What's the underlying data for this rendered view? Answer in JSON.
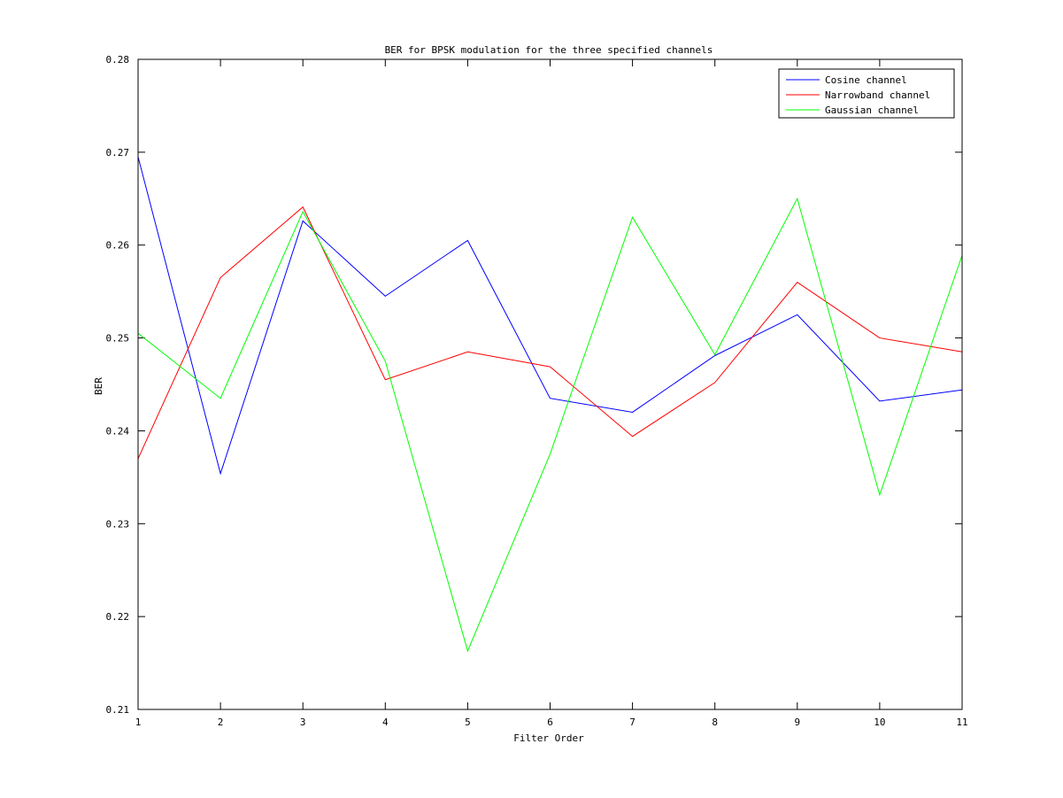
{
  "chart_data": {
    "type": "line",
    "title": "BER for BPSK modulation for the three specified channels",
    "xlabel": "Filter Order",
    "ylabel": "BER",
    "xlim": [
      1,
      11
    ],
    "ylim": [
      0.21,
      0.28
    ],
    "x": [
      1,
      2,
      3,
      4,
      5,
      6,
      7,
      8,
      9,
      10,
      11
    ],
    "xticks": [
      "1",
      "2",
      "3",
      "4",
      "5",
      "6",
      "7",
      "8",
      "9",
      "10",
      "11"
    ],
    "yticks": [
      "0.21",
      "0.22",
      "0.23",
      "0.24",
      "0.25",
      "0.26",
      "0.27",
      "0.28"
    ],
    "grid": false,
    "legend_position": "top-right",
    "series": [
      {
        "name": "Cosine channel",
        "color": "#0000ff",
        "values": [
          0.2695,
          0.2354,
          0.2626,
          0.2545,
          0.2605,
          0.2435,
          0.242,
          0.2481,
          0.2525,
          0.2432,
          0.2444
        ]
      },
      {
        "name": "Narrowband channel",
        "color": "#ff0000",
        "values": [
          0.237,
          0.2565,
          0.2641,
          0.2455,
          0.2485,
          0.2469,
          0.2394,
          0.2452,
          0.256,
          0.25,
          0.2485
        ]
      },
      {
        "name": "Gaussian channel",
        "color": "#00ff00",
        "values": [
          0.2505,
          0.2435,
          0.2636,
          0.2475,
          0.2163,
          0.2375,
          0.263,
          0.2482,
          0.265,
          0.2331,
          0.2589
        ]
      }
    ]
  }
}
